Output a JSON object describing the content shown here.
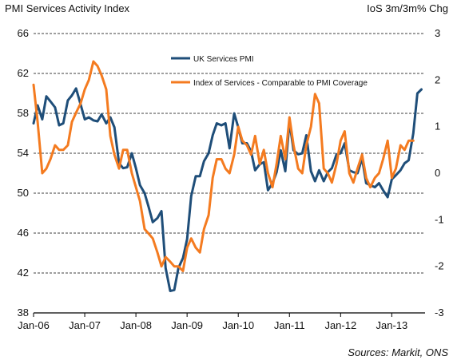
{
  "header": {
    "title": "PMI Services Activity Index",
    "right_axis_title": "IoS 3m/3m% Chg"
  },
  "footer": {
    "source": "Sources: Markit, ONS"
  },
  "chart_data": {
    "type": "line",
    "title": "PMI Services Activity Index",
    "x_tick_labels": [
      "Jan-06",
      "Jan-07",
      "Jan-08",
      "Jan-09",
      "Jan-10",
      "Jan-11",
      "Jan-12",
      "Jan-13"
    ],
    "x_range": [
      2006.0,
      2013.65
    ],
    "y_left": {
      "label": "",
      "range": [
        38,
        66
      ],
      "ticks": [
        38,
        42,
        46,
        50,
        54,
        58,
        62,
        66
      ]
    },
    "y_right": {
      "label": "IoS 3m/3m% Chg",
      "range": [
        -3,
        3
      ],
      "ticks": [
        -3,
        -2,
        -1,
        0,
        1,
        2,
        3
      ]
    },
    "grid": true,
    "legend_position": "top-center",
    "series": [
      {
        "name": "UK Services PMI",
        "axis": "left",
        "color": "#1f4e79",
        "x": [
          2006.0,
          2006.08,
          2006.17,
          2006.25,
          2006.33,
          2006.42,
          2006.5,
          2006.58,
          2006.67,
          2006.75,
          2006.83,
          2006.92,
          2007.0,
          2007.08,
          2007.17,
          2007.25,
          2007.33,
          2007.42,
          2007.5,
          2007.58,
          2007.67,
          2007.75,
          2007.83,
          2007.92,
          2008.0,
          2008.08,
          2008.17,
          2008.25,
          2008.33,
          2008.42,
          2008.5,
          2008.58,
          2008.67,
          2008.75,
          2008.83,
          2008.92,
          2009.0,
          2009.08,
          2009.17,
          2009.25,
          2009.33,
          2009.42,
          2009.5,
          2009.58,
          2009.67,
          2009.75,
          2009.83,
          2009.92,
          2010.0,
          2010.08,
          2010.17,
          2010.25,
          2010.33,
          2010.42,
          2010.5,
          2010.58,
          2010.67,
          2010.75,
          2010.83,
          2010.92,
          2011.0,
          2011.08,
          2011.17,
          2011.25,
          2011.33,
          2011.42,
          2011.5,
          2011.58,
          2011.67,
          2011.75,
          2011.83,
          2011.92,
          2012.0,
          2012.08,
          2012.17,
          2012.25,
          2012.33,
          2012.42,
          2012.5,
          2012.58,
          2012.67,
          2012.75,
          2012.83,
          2012.92,
          2013.0,
          2013.08,
          2013.17,
          2013.25,
          2013.33,
          2013.42,
          2013.5,
          2013.58
        ],
        "values": [
          57.0,
          58.8,
          57.4,
          59.7,
          59.2,
          58.6,
          56.8,
          57.0,
          59.3,
          59.8,
          60.5,
          58.9,
          57.4,
          57.6,
          57.3,
          57.2,
          57.9,
          57.0,
          57.6,
          56.6,
          53.0,
          52.5,
          52.6,
          54.0,
          52.5,
          50.8,
          50.0,
          48.6,
          47.1,
          47.5,
          48.2,
          42.5,
          40.2,
          40.3,
          42.5,
          43.5,
          45.4,
          49.7,
          51.7,
          51.7,
          53.2,
          54.0,
          55.8,
          57.0,
          56.8,
          57.0,
          54.5,
          58.0,
          56.6,
          55.0,
          55.0,
          54.2,
          52.3,
          52.9,
          53.1,
          50.3,
          51.0,
          52.1,
          54.3,
          52.2,
          57.2,
          54.3,
          53.9,
          54.0,
          55.8,
          52.2,
          51.2,
          52.3,
          51.2,
          52.1,
          52.5,
          53.9,
          54.0,
          55.0,
          52.3,
          52.1,
          52.0,
          53.5,
          51.0,
          50.8,
          50.6,
          51.0,
          50.3,
          49.6,
          51.4,
          51.8,
          52.3,
          53.0,
          53.3,
          56.0,
          60.0,
          60.4
        ]
      },
      {
        "name": "Index of Services - Comparable to PMI Coverage",
        "axis": "right",
        "color": "#f47b20",
        "x": [
          2006.0,
          2006.08,
          2006.17,
          2006.25,
          2006.33,
          2006.42,
          2006.5,
          2006.58,
          2006.67,
          2006.75,
          2006.83,
          2006.92,
          2007.0,
          2007.08,
          2007.17,
          2007.25,
          2007.33,
          2007.42,
          2007.5,
          2007.58,
          2007.67,
          2007.75,
          2007.83,
          2007.92,
          2008.0,
          2008.08,
          2008.17,
          2008.25,
          2008.33,
          2008.42,
          2008.5,
          2008.58,
          2008.67,
          2008.75,
          2008.83,
          2008.92,
          2009.0,
          2009.08,
          2009.17,
          2009.25,
          2009.33,
          2009.42,
          2009.5,
          2009.58,
          2009.67,
          2009.75,
          2009.83,
          2009.92,
          2010.0,
          2010.08,
          2010.17,
          2010.25,
          2010.33,
          2010.42,
          2010.5,
          2010.58,
          2010.67,
          2010.75,
          2010.83,
          2010.92,
          2011.0,
          2011.08,
          2011.17,
          2011.25,
          2011.33,
          2011.42,
          2011.5,
          2011.58,
          2011.67,
          2011.75,
          2011.83,
          2011.92,
          2012.0,
          2012.08,
          2012.17,
          2012.25,
          2012.33,
          2012.42,
          2012.5,
          2012.58,
          2012.67,
          2012.75,
          2012.83,
          2012.92,
          2013.0,
          2013.08,
          2013.17,
          2013.25,
          2013.33,
          2013.42
        ],
        "values": [
          1.9,
          1.1,
          0.0,
          0.1,
          0.3,
          0.6,
          0.5,
          0.5,
          0.6,
          1.1,
          1.3,
          1.5,
          1.8,
          2.0,
          2.4,
          2.3,
          2.1,
          1.8,
          0.8,
          0.4,
          0.1,
          0.5,
          0.5,
          0.0,
          -0.3,
          -0.6,
          -1.2,
          -1.3,
          -1.4,
          -1.7,
          -2.0,
          -1.8,
          -1.9,
          -2.0,
          -2.0,
          -2.1,
          -1.6,
          -1.4,
          -1.6,
          -1.7,
          -1.2,
          -0.9,
          -0.1,
          0.3,
          0.3,
          0.1,
          0.0,
          0.4,
          1.0,
          0.7,
          0.6,
          0.4,
          0.8,
          0.2,
          0.5,
          0.0,
          -0.3,
          0.2,
          0.8,
          0.3,
          1.2,
          0.6,
          0.1,
          0.0,
          0.6,
          1.0,
          1.7,
          1.5,
          0.1,
          0.0,
          -0.2,
          0.2,
          0.7,
          0.9,
          0.0,
          -0.2,
          0.1,
          0.4,
          -0.1,
          -0.3,
          -0.1,
          0.0,
          0.3,
          0.7,
          -0.1,
          0.1,
          0.6,
          0.5,
          0.7,
          0.7
        ]
      }
    ]
  }
}
